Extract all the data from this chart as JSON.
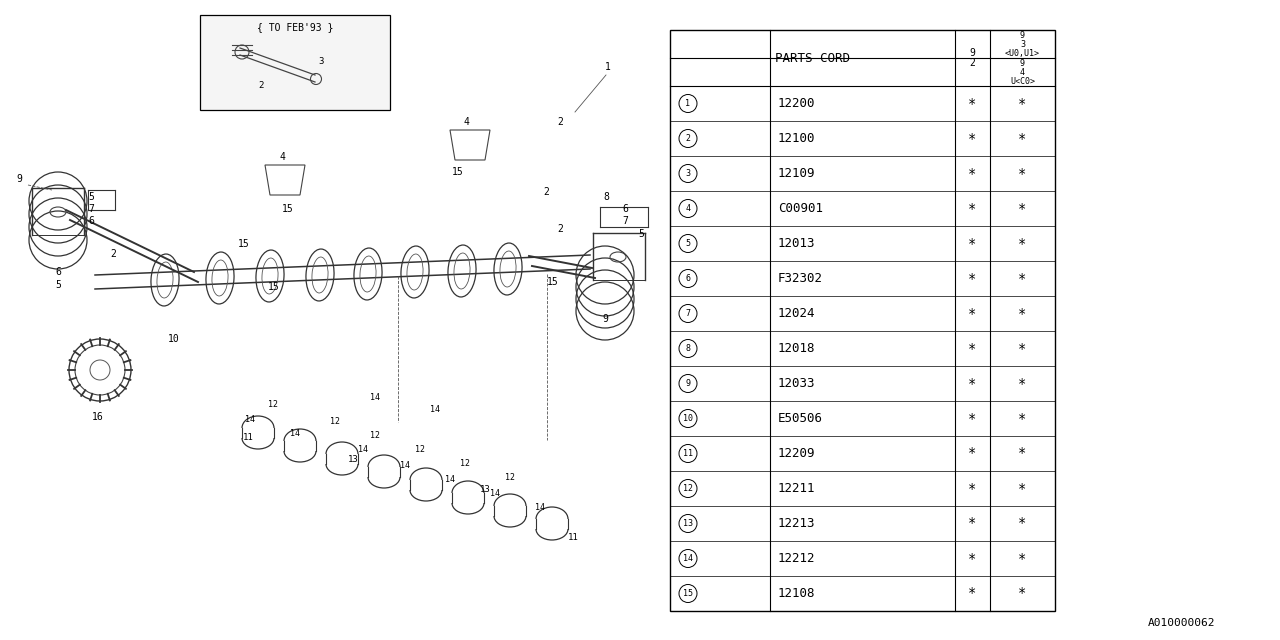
{
  "bg_color": "#ffffff",
  "line_color": "#000000",
  "watermark": "A010000062",
  "table": {
    "rows": [
      {
        "num": "1",
        "code": "12200",
        "c1": "*",
        "c2": "*"
      },
      {
        "num": "2",
        "code": "12100",
        "c1": "*",
        "c2": "*"
      },
      {
        "num": "3",
        "code": "12109",
        "c1": "*",
        "c2": "*"
      },
      {
        "num": "4",
        "code": "C00901",
        "c1": "*",
        "c2": "*"
      },
      {
        "num": "5",
        "code": "12013",
        "c1": "*",
        "c2": "*"
      },
      {
        "num": "6",
        "code": "F32302",
        "c1": "*",
        "c2": "*"
      },
      {
        "num": "7",
        "code": "12024",
        "c1": "*",
        "c2": "*"
      },
      {
        "num": "8",
        "code": "12018",
        "c1": "*",
        "c2": "*"
      },
      {
        "num": "9",
        "code": "12033",
        "c1": "*",
        "c2": "*"
      },
      {
        "num": "10",
        "code": "E50506",
        "c1": "*",
        "c2": "*"
      },
      {
        "num": "11",
        "code": "12209",
        "c1": "*",
        "c2": "*"
      },
      {
        "num": "12",
        "code": "12211",
        "c1": "*",
        "c2": "*"
      },
      {
        "num": "13",
        "code": "12213",
        "c1": "*",
        "c2": "*"
      },
      {
        "num": "14",
        "code": "12212",
        "c1": "*",
        "c2": "*"
      },
      {
        "num": "15",
        "code": "12108",
        "c1": "*",
        "c2": "*"
      }
    ]
  },
  "font_size_table": 9,
  "font_size_label": 7
}
